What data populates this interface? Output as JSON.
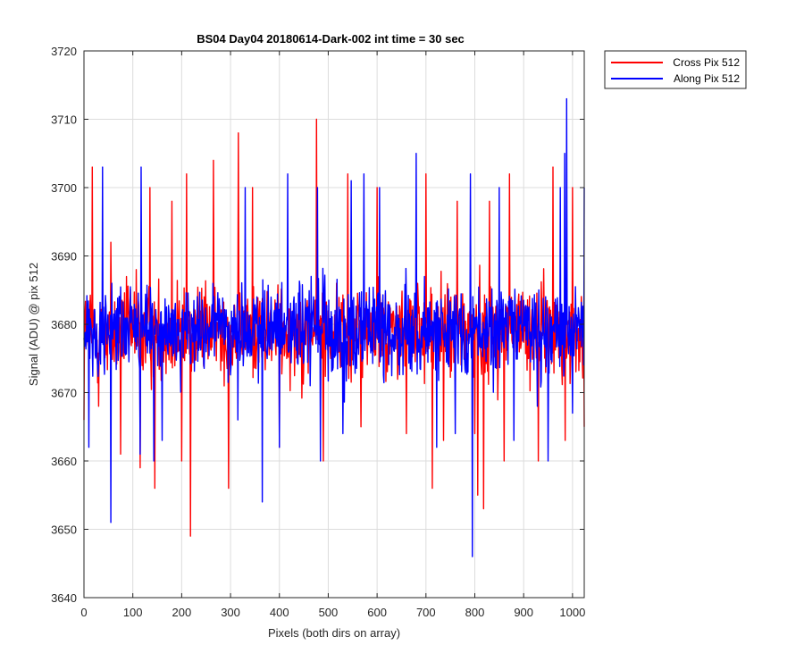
{
  "chart_data": {
    "type": "line",
    "title": "BS04 Day04 20180614-Dark-002 int time = 30 sec",
    "xlabel": "Pixels (both dirs on array)",
    "ylabel": "Signal (ADU) @ pix 512",
    "xlim": [
      0,
      1024
    ],
    "ylim": [
      3640,
      3720
    ],
    "xticks": [
      0,
      100,
      200,
      300,
      400,
      500,
      600,
      700,
      800,
      900,
      1000
    ],
    "yticks": [
      3640,
      3650,
      3660,
      3670,
      3680,
      3690,
      3700,
      3710,
      3720
    ],
    "grid": true,
    "legend_position": "outside top-right",
    "series": [
      {
        "name": "Cross Pix 512",
        "color": "#ff0000",
        "points": [
          [
            0,
            3666
          ],
          [
            17,
            3703
          ],
          [
            30,
            3668
          ],
          [
            55,
            3692
          ],
          [
            75,
            3661
          ],
          [
            107,
            3688
          ],
          [
            115,
            3659
          ],
          [
            135,
            3700
          ],
          [
            145,
            3656
          ],
          [
            180,
            3698
          ],
          [
            200,
            3660
          ],
          [
            210,
            3702
          ],
          [
            218,
            3649
          ],
          [
            265,
            3704
          ],
          [
            296,
            3656
          ],
          [
            316,
            3708
          ],
          [
            345,
            3700
          ],
          [
            400,
            3662
          ],
          [
            476,
            3710
          ],
          [
            490,
            3660
          ],
          [
            540,
            3702
          ],
          [
            567,
            3665
          ],
          [
            600,
            3700
          ],
          [
            660,
            3664
          ],
          [
            700,
            3702
          ],
          [
            713,
            3656
          ],
          [
            736,
            3663
          ],
          [
            764,
            3698
          ],
          [
            800,
            3664
          ],
          [
            806,
            3655
          ],
          [
            818,
            3653
          ],
          [
            830,
            3698
          ],
          [
            860,
            3660
          ],
          [
            871,
            3702
          ],
          [
            930,
            3660
          ],
          [
            960,
            3703
          ],
          [
            985,
            3663
          ],
          [
            1000,
            3700
          ],
          [
            1024,
            3665
          ]
        ]
      },
      {
        "name": "Along Pix 512",
        "color": "#0000ff",
        "points": [
          [
            0,
            3678
          ],
          [
            10,
            3662
          ],
          [
            38,
            3703
          ],
          [
            55,
            3651
          ],
          [
            115,
            3661
          ],
          [
            117,
            3703
          ],
          [
            143,
            3660
          ],
          [
            160,
            3663
          ],
          [
            315,
            3666
          ],
          [
            330,
            3700
          ],
          [
            365,
            3654
          ],
          [
            400,
            3662
          ],
          [
            417,
            3702
          ],
          [
            478,
            3700
          ],
          [
            484,
            3660
          ],
          [
            530,
            3664
          ],
          [
            547,
            3701
          ],
          [
            573,
            3702
          ],
          [
            605,
            3700
          ],
          [
            680,
            3705
          ],
          [
            722,
            3662
          ],
          [
            760,
            3664
          ],
          [
            791,
            3702
          ],
          [
            795,
            3646
          ],
          [
            850,
            3700
          ],
          [
            880,
            3663
          ],
          [
            928,
            3668
          ],
          [
            950,
            3660
          ],
          [
            975,
            3700
          ],
          [
            984,
            3705
          ],
          [
            988,
            3713
          ],
          [
            1000,
            3667
          ],
          [
            1024,
            3700
          ]
        ]
      }
    ]
  }
}
